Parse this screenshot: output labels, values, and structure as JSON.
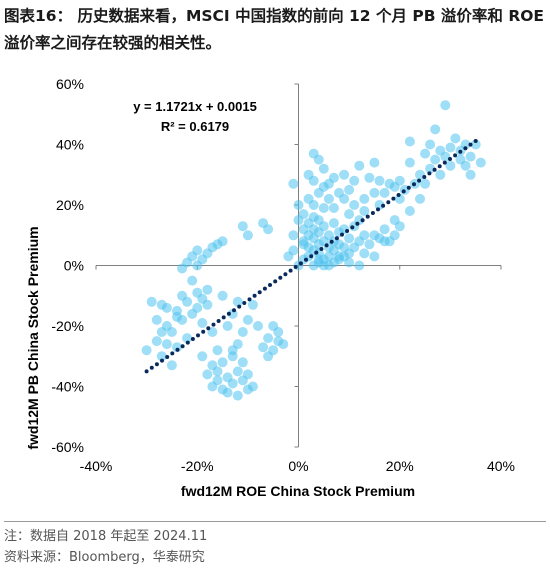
{
  "caption": "图表16：  历史数据来看，MSCI 中国指数的前向 12 个月 PB 溢价率和 ROE 溢价率之间存在较强的相关性。",
  "footer": {
    "note": "注：数据自 2018 年起至 2024.11",
    "source": "资料来源：Bloomberg，华泰研究"
  },
  "colors": {
    "points": "#4fc3ee",
    "trendline": "#0b2a5c",
    "axis": "#7f7f7f"
  },
  "chart_data": {
    "type": "scatter",
    "xlabel": "fwd12M ROE China Stock Premium",
    "ylabel": "fwd12M PB China Stock Premium",
    "xlim": [
      -0.4,
      0.4
    ],
    "ylim": [
      -0.6,
      0.6
    ],
    "x_ticks": [
      "-40%",
      "-20%",
      "0%",
      "20%",
      "40%"
    ],
    "y_ticks": [
      "60%",
      "40%",
      "20%",
      "0%",
      "-20%",
      "-40%",
      "-60%"
    ],
    "annotations": [
      "y = 1.1721x + 0.0015",
      "R² = 0.6179"
    ],
    "trendline": {
      "slope": 1.1721,
      "intercept": 0.0015,
      "x_range": [
        -0.3,
        0.35
      ],
      "style": "dotted"
    },
    "points": [
      [
        -0.3,
        -0.28
      ],
      [
        -0.29,
        -0.12
      ],
      [
        -0.28,
        -0.18
      ],
      [
        -0.28,
        -0.25
      ],
      [
        -0.27,
        -0.13
      ],
      [
        -0.27,
        -0.3
      ],
      [
        -0.26,
        -0.2
      ],
      [
        -0.26,
        -0.14
      ],
      [
        -0.25,
        -0.22
      ],
      [
        -0.25,
        -0.33
      ],
      [
        -0.24,
        -0.15
      ],
      [
        -0.24,
        -0.27
      ],
      [
        -0.23,
        -0.1
      ],
      [
        -0.23,
        -0.18
      ],
      [
        -0.22,
        -0.12
      ],
      [
        -0.22,
        -0.24
      ],
      [
        -0.21,
        -0.16
      ],
      [
        -0.21,
        -0.05
      ],
      [
        -0.2,
        -0.09
      ],
      [
        -0.2,
        -0.14
      ],
      [
        -0.19,
        -0.11
      ],
      [
        -0.19,
        -0.3
      ],
      [
        -0.18,
        -0.08
      ],
      [
        -0.18,
        -0.36
      ],
      [
        -0.18,
        -0.13
      ],
      [
        -0.17,
        -0.33
      ],
      [
        -0.17,
        -0.4
      ],
      [
        -0.16,
        -0.38
      ],
      [
        -0.16,
        -0.35
      ],
      [
        -0.15,
        -0.41
      ],
      [
        -0.15,
        -0.32
      ],
      [
        -0.14,
        -0.37
      ],
      [
        -0.14,
        -0.42
      ],
      [
        -0.13,
        -0.3
      ],
      [
        -0.13,
        -0.39
      ],
      [
        -0.13,
        -0.28
      ],
      [
        -0.12,
        -0.35
      ],
      [
        -0.12,
        -0.43
      ],
      [
        -0.11,
        -0.38
      ],
      [
        -0.11,
        -0.32
      ],
      [
        -0.1,
        -0.36
      ],
      [
        -0.1,
        -0.41
      ],
      [
        -0.09,
        -0.4
      ],
      [
        -0.12,
        -0.26
      ],
      [
        -0.11,
        -0.22
      ],
      [
        -0.1,
        -0.18
      ],
      [
        -0.09,
        -0.13
      ],
      [
        -0.08,
        -0.2
      ],
      [
        -0.07,
        -0.27
      ],
      [
        -0.06,
        -0.3
      ],
      [
        -0.06,
        -0.24
      ],
      [
        -0.05,
        -0.28
      ],
      [
        -0.04,
        -0.25
      ],
      [
        -0.03,
        -0.26
      ],
      [
        -0.05,
        -0.2
      ],
      [
        -0.04,
        -0.22
      ],
      [
        -0.2,
        0.0
      ],
      [
        -0.21,
        0.03
      ],
      [
        -0.2,
        0.05
      ],
      [
        -0.19,
        0.02
      ],
      [
        -0.18,
        0.04
      ],
      [
        -0.17,
        0.06
      ],
      [
        -0.16,
        0.07
      ],
      [
        -0.15,
        0.08
      ],
      [
        -0.11,
        0.13
      ],
      [
        -0.1,
        0.1
      ],
      [
        -0.06,
        0.12
      ],
      [
        -0.07,
        0.14
      ],
      [
        -0.23,
        -0.01
      ],
      [
        -0.22,
        0.01
      ],
      [
        -0.24,
        -0.17
      ],
      [
        -0.26,
        -0.26
      ],
      [
        -0.27,
        -0.22
      ],
      [
        -0.15,
        -0.1
      ],
      [
        -0.14,
        -0.2
      ],
      [
        -0.16,
        -0.28
      ],
      [
        -0.17,
        -0.22
      ],
      [
        -0.13,
        -0.16
      ],
      [
        -0.12,
        -0.12
      ],
      [
        -0.19,
        -0.19
      ],
      [
        -0.02,
        0.03
      ],
      [
        -0.01,
        0.05
      ],
      [
        -0.01,
        0.1
      ],
      [
        0.0,
        0.0
      ],
      [
        0.0,
        0.15
      ],
      [
        0.0,
        0.2
      ],
      [
        0.01,
        0.02
      ],
      [
        0.01,
        0.08
      ],
      [
        0.01,
        0.12
      ],
      [
        0.01,
        0.17
      ],
      [
        0.02,
        0.03
      ],
      [
        0.02,
        0.06
      ],
      [
        0.02,
        0.1
      ],
      [
        0.02,
        0.14
      ],
      [
        0.02,
        0.22
      ],
      [
        0.02,
        0.3
      ],
      [
        0.03,
        0.0
      ],
      [
        0.03,
        0.05
      ],
      [
        0.03,
        0.09
      ],
      [
        0.03,
        0.12
      ],
      [
        0.03,
        0.16
      ],
      [
        0.03,
        0.2
      ],
      [
        0.03,
        0.28
      ],
      [
        0.03,
        0.37
      ],
      [
        0.04,
        0.01
      ],
      [
        0.04,
        0.04
      ],
      [
        0.04,
        0.07
      ],
      [
        0.04,
        0.11
      ],
      [
        0.04,
        0.15
      ],
      [
        0.04,
        0.24
      ],
      [
        0.04,
        0.35
      ],
      [
        0.05,
        0.02
      ],
      [
        0.05,
        0.08
      ],
      [
        0.05,
        0.13
      ],
      [
        0.05,
        0.19
      ],
      [
        0.05,
        0.26
      ],
      [
        0.05,
        0.32
      ],
      [
        0.06,
        0.03
      ],
      [
        0.06,
        0.06
      ],
      [
        0.06,
        0.1
      ],
      [
        0.06,
        0.22
      ],
      [
        0.06,
        0.27
      ],
      [
        0.07,
        0.05
      ],
      [
        0.07,
        0.08
      ],
      [
        0.07,
        0.14
      ],
      [
        0.07,
        0.19
      ],
      [
        0.07,
        0.29
      ],
      [
        0.08,
        0.03
      ],
      [
        0.08,
        0.07
      ],
      [
        0.08,
        0.11
      ],
      [
        0.08,
        0.24
      ],
      [
        0.09,
        0.06
      ],
      [
        0.09,
        0.12
      ],
      [
        0.09,
        0.3
      ],
      [
        0.1,
        0.04
      ],
      [
        0.1,
        0.09
      ],
      [
        0.1,
        0.17
      ],
      [
        0.1,
        0.25
      ],
      [
        0.11,
        0.06
      ],
      [
        0.11,
        0.13
      ],
      [
        0.11,
        0.2
      ],
      [
        0.11,
        0.28
      ],
      [
        0.12,
        0.08
      ],
      [
        0.12,
        0.15
      ],
      [
        0.12,
        0.33
      ],
      [
        0.13,
        0.1
      ],
      [
        0.13,
        0.22
      ],
      [
        0.14,
        0.07
      ],
      [
        0.14,
        0.29
      ],
      [
        0.15,
        0.1
      ],
      [
        0.15,
        0.24
      ],
      [
        0.16,
        0.09
      ],
      [
        0.16,
        0.2
      ],
      [
        0.17,
        0.12
      ],
      [
        0.17,
        0.24
      ],
      [
        0.18,
        0.08
      ],
      [
        0.18,
        0.27
      ],
      [
        0.19,
        0.1
      ],
      [
        0.19,
        0.15
      ],
      [
        0.2,
        0.22
      ],
      [
        0.2,
        0.28
      ],
      [
        0.21,
        0.25
      ],
      [
        0.22,
        0.18
      ],
      [
        0.22,
        0.34
      ],
      [
        0.23,
        0.27
      ],
      [
        0.24,
        0.3
      ],
      [
        0.25,
        0.27
      ],
      [
        0.25,
        0.37
      ],
      [
        0.26,
        0.32
      ],
      [
        0.26,
        0.4
      ],
      [
        0.27,
        0.35
      ],
      [
        0.27,
        0.45
      ],
      [
        0.28,
        0.3
      ],
      [
        0.29,
        0.36
      ],
      [
        0.3,
        0.39
      ],
      [
        0.3,
        0.33
      ],
      [
        0.31,
        0.42
      ],
      [
        0.32,
        0.38
      ],
      [
        0.32,
        0.35
      ],
      [
        0.33,
        0.4
      ],
      [
        0.34,
        0.3
      ],
      [
        0.34,
        0.36
      ],
      [
        0.35,
        0.4
      ],
      [
        0.36,
        0.34
      ],
      [
        0.29,
        0.53
      ],
      [
        0.22,
        0.41
      ],
      [
        0.12,
        -0.0
      ],
      [
        0.13,
        0.04
      ],
      [
        0.15,
        0.03
      ],
      [
        0.08,
        0.02
      ],
      [
        0.06,
        -0.0
      ],
      [
        0.07,
        0.01
      ],
      [
        0.09,
        0.03
      ],
      [
        0.1,
        0.01
      ],
      [
        0.05,
        0.0
      ],
      [
        0.04,
        0.02
      ],
      [
        -0.01,
        0.27
      ],
      [
        0.15,
        0.34
      ],
      [
        0.19,
        0.26
      ],
      [
        0.17,
        0.08
      ],
      [
        0.2,
        0.13
      ],
      [
        0.24,
        0.22
      ],
      [
        0.28,
        0.38
      ],
      [
        0.33,
        0.33
      ],
      [
        0.01,
        0.07
      ],
      [
        0.09,
        0.22
      ],
      [
        0.13,
        0.18
      ],
      [
        0.16,
        0.28
      ]
    ]
  }
}
